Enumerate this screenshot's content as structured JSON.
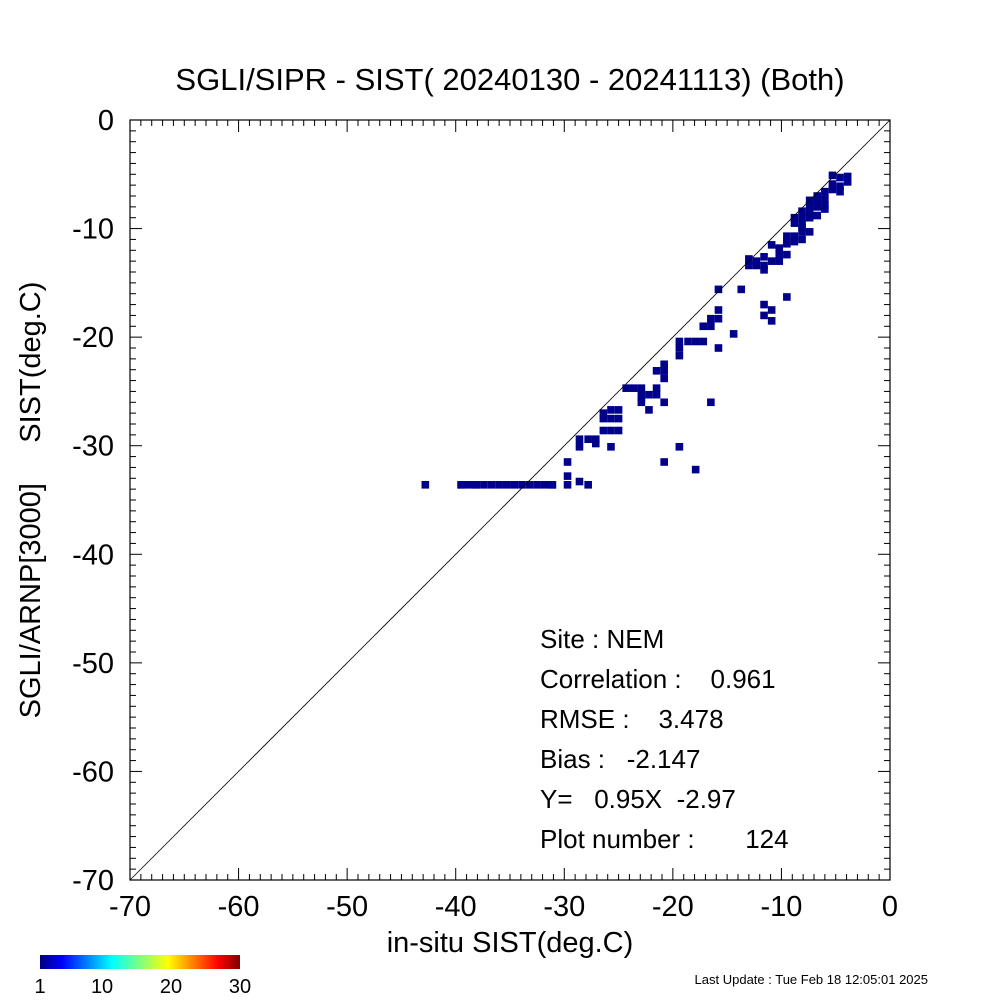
{
  "chart_data": {
    "type": "heatmap",
    "title": "SGLI/SIPR - SIST( 20240130 - 20241113) (Both)",
    "xlabel": "in-situ SIST(deg.C)",
    "ylabel": "SGLI/ARNP[3000]     SIST(deg.C)",
    "xlim": [
      -70,
      0
    ],
    "ylim": [
      -70,
      0
    ],
    "x_ticks": [
      "-70",
      "-60",
      "-50",
      "-40",
      "-30",
      "-20",
      "-10",
      "0"
    ],
    "y_ticks": [
      "0",
      "-10",
      "-20",
      "-30",
      "-40",
      "-50",
      "-60",
      "-70"
    ],
    "reference_line": "1:1",
    "stats": {
      "site": "Site : NEM",
      "correlation": "Correlation :    0.961",
      "rmse": "RMSE :    3.478",
      "bias": "Bias :   -2.147",
      "regression": "Y=   0.95X  -2.97",
      "plot_number": "Plot number :       124"
    },
    "colorbar": {
      "ticks": [
        "1",
        "10",
        "20",
        "30"
      ],
      "range": [
        1,
        30
      ]
    },
    "cell_size_deg": 0.7,
    "cell_color": "#00008b",
    "points": [
      [
        -42.8,
        -33.6
      ],
      [
        -39.5,
        -33.6
      ],
      [
        -38.8,
        -33.6
      ],
      [
        -38.1,
        -33.6
      ],
      [
        -37.4,
        -33.6
      ],
      [
        -35.3,
        -33.6
      ],
      [
        -34.6,
        -33.6
      ],
      [
        -33.2,
        -33.6
      ],
      [
        -31.8,
        -33.6
      ],
      [
        -31.1,
        -33.6
      ],
      [
        -29.7,
        -33.6
      ],
      [
        -29.7,
        -32.8
      ],
      [
        -29.7,
        -31.5
      ],
      [
        -28.6,
        -33.3
      ],
      [
        -27.8,
        -33.6
      ],
      [
        -28.6,
        -30.1
      ],
      [
        -27.8,
        -29.4
      ],
      [
        -27.1,
        -29.4
      ],
      [
        -26.4,
        -27.5
      ],
      [
        -25.7,
        -27.5
      ],
      [
        -25.0,
        -27.5
      ],
      [
        -25.7,
        -26.7
      ],
      [
        -26.4,
        -28.6
      ],
      [
        -25.7,
        -28.6
      ],
      [
        -25.0,
        -28.6
      ],
      [
        -25.7,
        -30.1
      ],
      [
        -23.6,
        -24.7
      ],
      [
        -22.9,
        -25.3
      ],
      [
        -22.2,
        -25.3
      ],
      [
        -21.5,
        -25.3
      ],
      [
        -22.9,
        -24.7
      ],
      [
        -22.2,
        -26.7
      ],
      [
        -21.5,
        -23.1
      ],
      [
        -20.8,
        -22.5
      ],
      [
        -20.8,
        -23.8
      ],
      [
        -20.8,
        -26.0
      ],
      [
        -19.4,
        -20.4
      ],
      [
        -19.4,
        -21.0
      ],
      [
        -19.4,
        -21.7
      ],
      [
        -17.9,
        -20.4
      ],
      [
        -17.2,
        -20.4
      ],
      [
        -17.2,
        -19.0
      ],
      [
        -16.5,
        -18.3
      ],
      [
        -15.8,
        -17.5
      ],
      [
        -16.5,
        -26.0
      ],
      [
        -15.8,
        -21.0
      ],
      [
        -15.8,
        -15.6
      ],
      [
        -14.4,
        -19.7
      ],
      [
        -13.7,
        -15.6
      ],
      [
        -13.0,
        -13.4
      ],
      [
        -12.3,
        -13.0
      ],
      [
        -11.6,
        -12.6
      ],
      [
        -11.6,
        -13.4
      ],
      [
        -10.9,
        -13.0
      ],
      [
        -10.2,
        -12.4
      ],
      [
        -10.2,
        -13.0
      ],
      [
        -10.2,
        -11.8
      ],
      [
        -11.6,
        -17.0
      ],
      [
        -11.6,
        -18.0
      ],
      [
        -10.9,
        -17.5
      ],
      [
        -10.9,
        -18.5
      ],
      [
        -9.5,
        -16.3
      ],
      [
        -9.5,
        -11.4
      ],
      [
        -8.8,
        -11.2
      ],
      [
        -8.8,
        -10.7
      ],
      [
        -8.1,
        -10.3
      ],
      [
        -8.1,
        -9.6
      ],
      [
        -8.1,
        -9.0
      ],
      [
        -8.1,
        -8.4
      ],
      [
        -7.4,
        -9.0
      ],
      [
        -7.4,
        -8.5
      ],
      [
        -7.4,
        -7.9
      ],
      [
        -6.7,
        -8.0
      ],
      [
        -6.7,
        -7.4
      ],
      [
        -6.0,
        -7.3
      ],
      [
        -6.0,
        -6.6
      ],
      [
        -5.3,
        -5.9
      ],
      [
        -5.3,
        -5.1
      ],
      [
        -4.6,
        -6.1
      ],
      [
        -4.6,
        -6.6
      ],
      [
        -3.9,
        -5.2
      ],
      [
        -3.9,
        -5.7
      ],
      [
        -7.4,
        -8.8
      ],
      [
        -8.1,
        -9.9
      ],
      [
        -8.8,
        -9.5
      ],
      [
        -6.7,
        -7.0
      ],
      [
        -5.3,
        -6.4
      ],
      [
        -19.4,
        -30.1
      ],
      [
        -20.8,
        -31.5
      ],
      [
        -17.9,
        -32.2
      ],
      [
        -38.1,
        -33.6
      ],
      [
        -32.5,
        -33.6
      ],
      [
        -36.0,
        -33.6
      ],
      [
        -24.3,
        -24.7
      ],
      [
        -22.9,
        -25.6
      ],
      [
        -9.5,
        -10.7
      ],
      [
        -7.4,
        -10.3
      ],
      [
        -6.7,
        -8.8
      ],
      [
        -8.1,
        -11.0
      ],
      [
        -9.5,
        -12.4
      ],
      [
        -10.9,
        -11.5
      ],
      [
        -12.3,
        -13.4
      ],
      [
        -16.5,
        -19.0
      ],
      [
        -15.8,
        -18.3
      ],
      [
        -18.6,
        -20.4
      ],
      [
        -26.4,
        -27.0
      ],
      [
        -27.1,
        -29.8
      ],
      [
        -28.6,
        -29.4
      ],
      [
        -25.0,
        -26.7
      ],
      [
        -21.5,
        -24.7
      ],
      [
        -20.8,
        -23.1
      ],
      [
        -6.0,
        -7.9
      ],
      [
        -4.6,
        -5.3
      ],
      [
        -7.4,
        -7.4
      ],
      [
        -6.0,
        -8.2
      ],
      [
        -8.8,
        -9.0
      ],
      [
        -9.5,
        -11.2
      ],
      [
        -31.1,
        -33.6
      ],
      [
        -33.9,
        -33.6
      ],
      [
        -36.7,
        -33.6
      ],
      [
        -39.5,
        -33.6
      ],
      [
        -22.9,
        -26.0
      ],
      [
        -13.0,
        -12.8
      ],
      [
        -11.6,
        -13.8
      ]
    ]
  },
  "footer": {
    "last_update": "Last Update : Tue Feb 18 12:05:01 2025"
  }
}
